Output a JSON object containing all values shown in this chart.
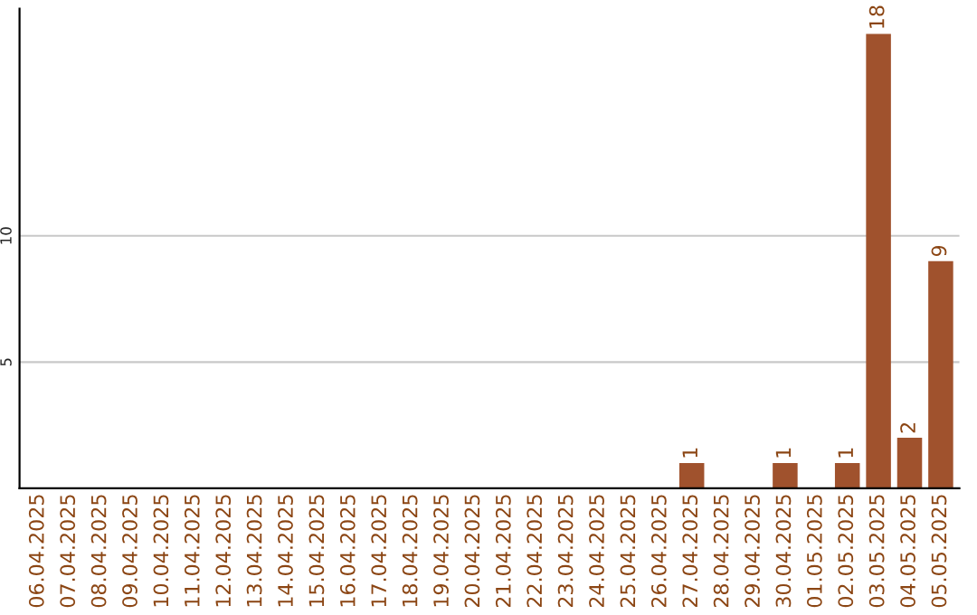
{
  "chart_data": {
    "type": "bar",
    "categories": [
      "06.04.2025",
      "07.04.2025",
      "08.04.2025",
      "09.04.2025",
      "10.04.2025",
      "11.04.2025",
      "12.04.2025",
      "13.04.2025",
      "14.04.2025",
      "15.04.2025",
      "16.04.2025",
      "17.04.2025",
      "18.04.2025",
      "19.04.2025",
      "20.04.2025",
      "21.04.2025",
      "22.04.2025",
      "23.04.2025",
      "24.04.2025",
      "25.04.2025",
      "26.04.2025",
      "27.04.2025",
      "28.04.2025",
      "29.04.2025",
      "30.04.2025",
      "01.05.2025",
      "02.05.2025",
      "03.05.2025",
      "04.05.2025",
      "05.05.2025"
    ],
    "values": [
      0,
      0,
      0,
      0,
      0,
      0,
      0,
      0,
      0,
      0,
      0,
      0,
      0,
      0,
      0,
      0,
      0,
      0,
      0,
      0,
      0,
      1,
      0,
      0,
      1,
      0,
      1,
      18,
      2,
      9
    ],
    "value_labels": [
      null,
      null,
      null,
      null,
      null,
      null,
      null,
      null,
      null,
      null,
      null,
      null,
      null,
      null,
      null,
      null,
      null,
      null,
      null,
      null,
      null,
      "1",
      null,
      null,
      "1",
      null,
      "1",
      "18",
      "2",
      "9"
    ],
    "color": "#a0522d",
    "ylim": [
      0,
      19
    ],
    "yticks": [
      5,
      10
    ],
    "grid": "y",
    "legend": false
  }
}
